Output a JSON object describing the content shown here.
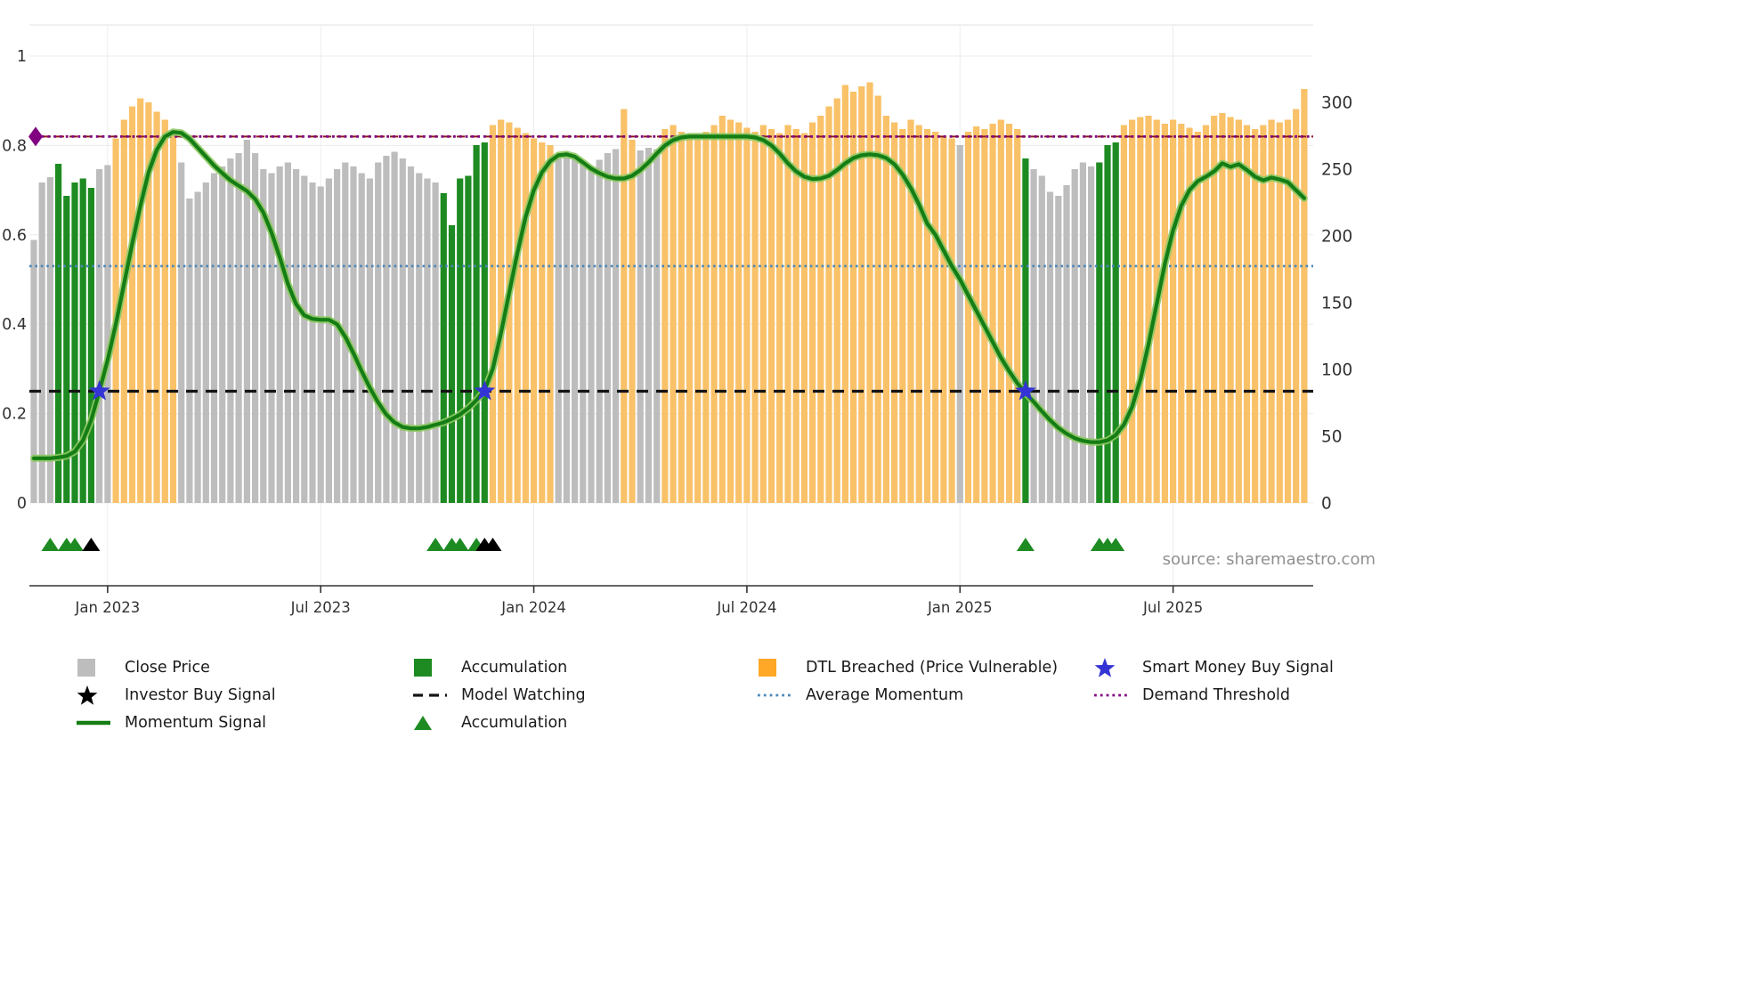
{
  "source_note": "source: sharemaestro.com",
  "colors": {
    "close": "#bdbdbd",
    "accumulation": "#1e8b22",
    "dtl_breached": "#f9c168",
    "dtl_legend": "#ffa726",
    "momentum_line": "#157d15",
    "momentum_halo": "#8cc860",
    "smart_money": "#3434d4",
    "investor_buy": "#000000",
    "model_watching": "#141414",
    "average_momentum": "#4a86b8",
    "demand_threshold": "#800080",
    "demand_threshold_shadow": "#8b1a1a",
    "axis_text": "#333333",
    "grid": "#ececec",
    "spine": "#333333",
    "source_text": "#909090"
  },
  "legend": {
    "columns": [
      [
        {
          "name": "close-price",
          "label": "Close Price",
          "swatch": "square",
          "color": "close"
        },
        {
          "name": "investor-buy-signal",
          "label": "Investor Buy Signal",
          "swatch": "star",
          "color": "investor_buy"
        },
        {
          "name": "momentum-signal",
          "label": "Momentum Signal",
          "swatch": "line",
          "color": "momentum_line"
        }
      ],
      [
        {
          "name": "accumulation-bars",
          "label": "Accumulation",
          "swatch": "square",
          "color": "accumulation"
        },
        {
          "name": "model-watching",
          "label": "Model Watching",
          "swatch": "dashed",
          "color": "model_watching"
        },
        {
          "name": "accumulation-markers",
          "label": "Accumulation",
          "swatch": "triangle",
          "color": "accumulation"
        }
      ],
      [
        {
          "name": "dtl-breached",
          "label": "DTL Breached (Price Vulnerable)",
          "swatch": "square",
          "color": "dtl_legend"
        },
        {
          "name": "average-momentum",
          "label": "Average Momentum",
          "swatch": "dotted",
          "color": "average_momentum"
        }
      ],
      [
        {
          "name": "smart-money-buy-signal",
          "label": "Smart Money Buy Signal",
          "swatch": "star",
          "color": "smart_money"
        },
        {
          "name": "demand-threshold",
          "label": "Demand Threshold",
          "swatch": "dotted",
          "color": "demand_threshold"
        }
      ]
    ]
  },
  "chart_data": {
    "type": "bar",
    "overlay_type": "line",
    "title": "",
    "axes": {
      "left": {
        "range": [
          0,
          1
        ],
        "ticks": [
          {
            "label": "0",
            "value": 0
          },
          {
            "label": "0.2",
            "value": 0.2
          },
          {
            "label": "0.4",
            "value": 0.4
          },
          {
            "label": "0.6",
            "value": 0.6
          },
          {
            "label": "0.8",
            "value": 0.8
          },
          {
            "label": "1",
            "value": 1
          }
        ]
      },
      "right": {
        "range": [
          0,
          300
        ],
        "ticks": [
          {
            "label": "0",
            "value": 0
          },
          {
            "label": "50",
            "value": 50
          },
          {
            "label": "100",
            "value": 100
          },
          {
            "label": "150",
            "value": 150
          },
          {
            "label": "200",
            "value": 200
          },
          {
            "label": "250",
            "value": 250
          },
          {
            "label": "300",
            "value": 300
          }
        ]
      },
      "x": {
        "ticks": [
          {
            "label": "Jan 2023",
            "index": 9
          },
          {
            "label": "Jul 2023",
            "index": 35
          },
          {
            "label": "Jan 2024",
            "index": 61
          },
          {
            "label": "Jul 2024",
            "index": 87
          },
          {
            "label": "Jan 2025",
            "index": 113
          },
          {
            "label": "Jul 2025",
            "index": 139
          }
        ]
      }
    },
    "bar_segments": [
      {
        "state": "close",
        "values": [
          197,
          240,
          244
        ]
      },
      {
        "state": "accumulation",
        "values": [
          254,
          230,
          240,
          243,
          236
        ]
      },
      {
        "state": "close",
        "values": [
          250,
          253
        ]
      },
      {
        "state": "dtl_breached",
        "values": [
          273,
          287,
          297,
          303,
          300,
          293,
          287,
          277
        ]
      },
      {
        "state": "close",
        "values": [
          255,
          228,
          233,
          240,
          247,
          252,
          258,
          262,
          272,
          262,
          250,
          247,
          252,
          255,
          250,
          245,
          240,
          237,
          243,
          250,
          255,
          252,
          247,
          243,
          255,
          260,
          263,
          258,
          252,
          247,
          243,
          240
        ]
      },
      {
        "state": "accumulation",
        "values": [
          232,
          208,
          243,
          245,
          268,
          270
        ]
      },
      {
        "state": "dtl_breached",
        "values": [
          283,
          287,
          285,
          281,
          277,
          273,
          270,
          268
        ]
      },
      {
        "state": "close",
        "values": [
          258,
          263,
          260,
          255,
          252,
          257,
          262,
          265
        ]
      },
      {
        "state": "dtl_breached",
        "values": [
          295,
          272
        ]
      },
      {
        "state": "close",
        "values": [
          264,
          266,
          265
        ]
      },
      {
        "state": "dtl_breached",
        "values": [
          280,
          283,
          278,
          275,
          272,
          278,
          283,
          290,
          287,
          285,
          281,
          278,
          283,
          280,
          277,
          283,
          280,
          277,
          285,
          290,
          297,
          303,
          313,
          308,
          312,
          315,
          305,
          290,
          285,
          280,
          287,
          283,
          280,
          278,
          275,
          273
        ]
      },
      {
        "state": "close",
        "values": [
          268
        ]
      },
      {
        "state": "dtl_breached",
        "values": [
          278,
          282,
          280,
          284,
          287,
          284,
          280
        ]
      },
      {
        "state": "accumulation",
        "values": [
          258
        ]
      },
      {
        "state": "close",
        "values": [
          250,
          245,
          233,
          230,
          238,
          250,
          255,
          252
        ]
      },
      {
        "state": "accumulation",
        "values": [
          255,
          268,
          270
        ]
      },
      {
        "state": "dtl_breached",
        "values": [
          283,
          287,
          289,
          290,
          287,
          284,
          287,
          284,
          281,
          278,
          283,
          290,
          292,
          289,
          287,
          283,
          280,
          283,
          287,
          285,
          287,
          295,
          310
        ]
      }
    ],
    "momentum": [
      0.1,
      0.1,
      0.1,
      0.102,
      0.105,
      0.115,
      0.14,
      0.185,
      0.25,
      0.32,
      0.4,
      0.49,
      0.58,
      0.665,
      0.74,
      0.79,
      0.82,
      0.83,
      0.828,
      0.815,
      0.795,
      0.775,
      0.755,
      0.738,
      0.722,
      0.71,
      0.698,
      0.68,
      0.65,
      0.605,
      0.55,
      0.49,
      0.445,
      0.42,
      0.412,
      0.41,
      0.41,
      0.4,
      0.372,
      0.335,
      0.295,
      0.258,
      0.225,
      0.198,
      0.18,
      0.17,
      0.167,
      0.167,
      0.17,
      0.175,
      0.18,
      0.188,
      0.198,
      0.212,
      0.23,
      0.252,
      0.3,
      0.38,
      0.47,
      0.56,
      0.64,
      0.7,
      0.74,
      0.765,
      0.778,
      0.78,
      0.775,
      0.762,
      0.748,
      0.738,
      0.73,
      0.726,
      0.726,
      0.732,
      0.745,
      0.762,
      0.782,
      0.8,
      0.812,
      0.818,
      0.82,
      0.82,
      0.82,
      0.82,
      0.82,
      0.82,
      0.82,
      0.82,
      0.818,
      0.812,
      0.8,
      0.782,
      0.76,
      0.742,
      0.73,
      0.725,
      0.726,
      0.732,
      0.745,
      0.76,
      0.772,
      0.778,
      0.78,
      0.778,
      0.772,
      0.758,
      0.735,
      0.705,
      0.668,
      0.625,
      0.6,
      0.565,
      0.53,
      0.5,
      0.465,
      0.43,
      0.395,
      0.36,
      0.325,
      0.295,
      0.268,
      0.246,
      0.226,
      0.205,
      0.185,
      0.168,
      0.155,
      0.145,
      0.139,
      0.136,
      0.136,
      0.14,
      0.152,
      0.175,
      0.215,
      0.275,
      0.355,
      0.445,
      0.535,
      0.61,
      0.665,
      0.7,
      0.72,
      0.73,
      0.742,
      0.76,
      0.752,
      0.758,
      0.745,
      0.73,
      0.722,
      0.728,
      0.724,
      0.718,
      0.7,
      0.682
    ],
    "hlines": {
      "demand_threshold": {
        "label": "Demand Threshold",
        "value": 0.82
      },
      "average_momentum": {
        "label": "Average Momentum",
        "value": 0.53
      },
      "model_watching": {
        "label": "Model Watching",
        "value": 0.25
      }
    },
    "markers": {
      "smart_money_buy": {
        "indices": [
          8,
          55,
          121
        ],
        "value": 0.25
      },
      "demand_threshold_marker": {
        "value": 0.82
      },
      "accumulation_triangles": {
        "indices": [
          2,
          4,
          5,
          49,
          51,
          52,
          54,
          121,
          130,
          131,
          132
        ]
      },
      "investor_buy_triangles": {
        "indices": [
          7,
          55,
          56
        ]
      }
    }
  }
}
